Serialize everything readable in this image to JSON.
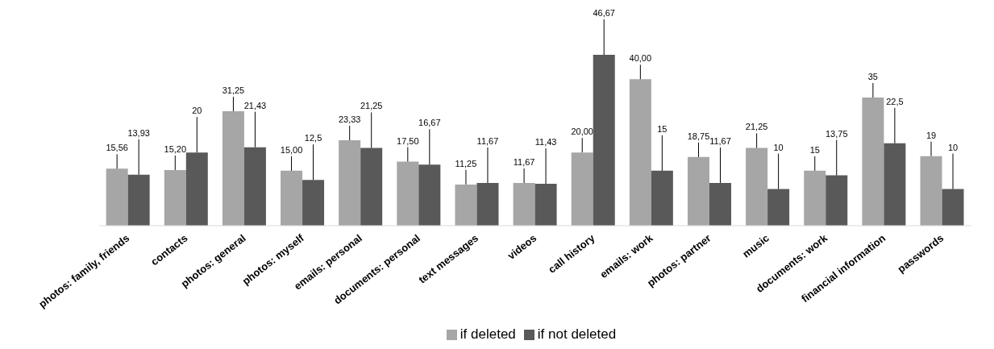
{
  "chart_data": {
    "type": "bar",
    "categories": [
      "photos: family, friends",
      "contacts",
      "photos: general",
      "photos: myself",
      "emails: personal",
      "documents: personal",
      "text messages",
      "videos",
      "call history",
      "emails: work",
      "photos: partner",
      "music",
      "documents: work",
      "financial information",
      "passwords"
    ],
    "series": [
      {
        "name": "if deleted",
        "color": "#a6a6a6",
        "values": [
          15.56,
          15.2,
          31.25,
          15,
          23.33,
          17.5,
          11.25,
          11.67,
          20,
          40,
          18.75,
          21.25,
          15,
          35,
          19
        ],
        "value_labels": [
          "15,56",
          "15,20",
          "31,25",
          "15,00",
          "23,33",
          "17,50",
          "11,25",
          "11,67",
          "20,00",
          "40,00",
          "18,75",
          "21,25",
          "15",
          "35",
          "19"
        ]
      },
      {
        "name": "if not deleted",
        "color": "#595959",
        "values": [
          13.93,
          20,
          21.43,
          12.5,
          21.25,
          16.67,
          11.67,
          11.43,
          46.67,
          15,
          11.67,
          10,
          13.75,
          22.5,
          10
        ],
        "value_labels": [
          "13,93",
          "20",
          "21,43",
          "12,5",
          "21,25",
          "16,67",
          "11,67",
          "11,43",
          "46,67",
          "15",
          "11,67",
          "10",
          "13,75",
          "22,5",
          "10"
        ]
      }
    ],
    "legend": "bottom"
  }
}
